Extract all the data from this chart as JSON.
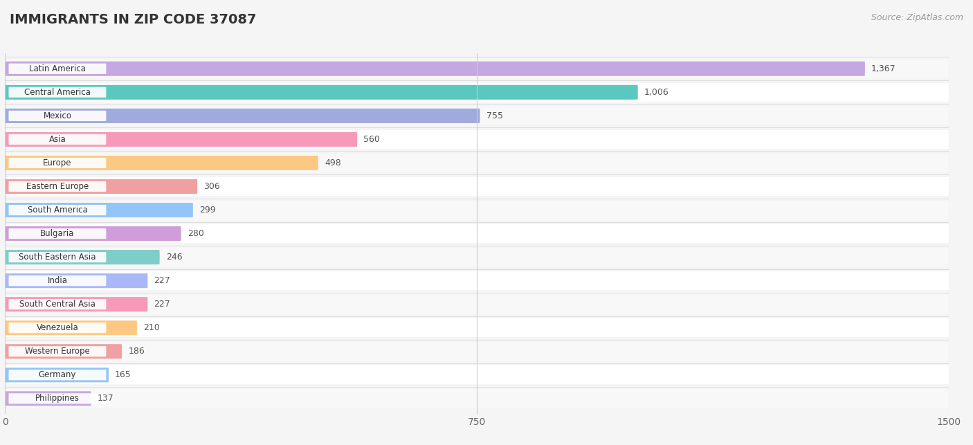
{
  "title": "IMMIGRANTS IN ZIP CODE 37087",
  "source": "Source: ZipAtlas.com",
  "categories": [
    "Latin America",
    "Central America",
    "Mexico",
    "Asia",
    "Europe",
    "Eastern Europe",
    "South America",
    "Bulgaria",
    "South Eastern Asia",
    "India",
    "South Central Asia",
    "Venezuela",
    "Western Europe",
    "Germany",
    "Philippines"
  ],
  "values": [
    1367,
    1006,
    755,
    560,
    498,
    306,
    299,
    280,
    246,
    227,
    227,
    210,
    186,
    165,
    137
  ],
  "bar_colors": [
    "#c5a8e0",
    "#5bc8c0",
    "#a0aadc",
    "#f799b8",
    "#fcc882",
    "#f0a0a0",
    "#93c5f8",
    "#d09cda",
    "#7ecdc8",
    "#a8b8f8",
    "#f799b8",
    "#fcc882",
    "#f0a0a0",
    "#93c5f8",
    "#c8a8de"
  ],
  "row_bg_colors": [
    "#f8f8f8",
    "#ffffff"
  ],
  "xlim": [
    0,
    1500
  ],
  "xticks": [
    0,
    750,
    1500
  ],
  "background_color": "#f5f5f5",
  "title_fontsize": 14,
  "bar_height": 0.62,
  "inside_value_threshold": 400,
  "value_label_color": "#555555",
  "value_label_inside_color": "#ffffff"
}
